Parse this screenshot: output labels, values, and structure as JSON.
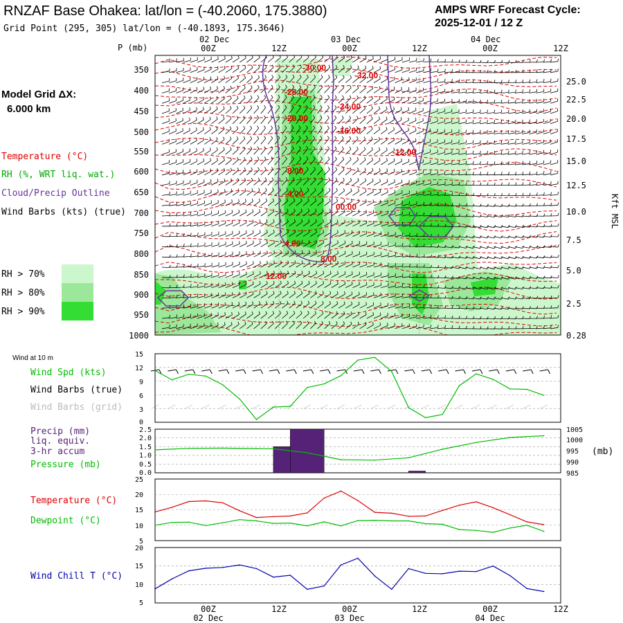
{
  "header": {
    "title": "RNZAF Base Ohakea:  lat/lon = (-40.2060, 175.3880)",
    "grid_point": "Grid Point (295, 305) lat/lon = (-40.1893, 175.3646)",
    "forecast_line1": "AMPS WRF Forecast Cycle:",
    "forecast_line2": "2025-12-01 / 12  Z"
  },
  "time_axis": {
    "ticks": [
      "00Z",
      "12Z",
      "00Z",
      "12Z",
      "00Z",
      "12Z"
    ],
    "dates_top": [
      "02 Dec",
      "03 Dec",
      "04 Dec"
    ],
    "dates_bottom": [
      "02 Dec",
      "03 Dec",
      "04 Dec"
    ]
  },
  "colors": {
    "rh70": "#ccf7cc",
    "rh80": "#9be89b",
    "rh90": "#33dd33",
    "temperature": "#dd0000",
    "dewpoint": "#00bb00",
    "cloud_outline": "#663399",
    "wind_chill": "#0000aa",
    "precip_bar": "#552277"
  },
  "sounding": {
    "p_label": "P (mb)",
    "model_grid_label": "Model Grid ΔX:",
    "model_grid_value": "6.000 km",
    "pressure_ticks": [
      "350",
      "400",
      "450",
      "500",
      "550",
      "600",
      "650",
      "700",
      "750",
      "800",
      "850",
      "900",
      "950",
      "1000"
    ],
    "kft_ticks": [
      "25.0",
      "22.5",
      "20.0",
      "17.5",
      "15.0",
      "12.5",
      "10.0",
      "7.5",
      "5.0",
      "2.5",
      "0.28"
    ],
    "kft_label": "Kft MSL",
    "legend": {
      "temperature": "Temperature (°C)",
      "rh": "RH (%, WRT liq. wat.)",
      "cloud": "Cloud/Precip Outline",
      "wind_barbs": "Wind Barbs (kts) (true)",
      "rh70": "RH > 70%",
      "rh80": "RH > 80%",
      "rh90": "RH > 90%"
    },
    "temp_labels": [
      "-30.00",
      "-32.00",
      "-28.00",
      "-24.00",
      "-20.00",
      "-16.00",
      "-12.00",
      "-8.00",
      "-4.00",
      "00.00",
      "4.00",
      "8.00",
      "12.00"
    ]
  },
  "panels": {
    "wind": {
      "header": "Wind at 10 m",
      "spd_label": "Wind Spd (kts)",
      "barbs_true": "Wind Barbs (true)",
      "barbs_grid": "Wind Barbs (grid)",
      "yticks": [
        "15",
        "12",
        "9",
        "6",
        "3",
        "0"
      ]
    },
    "precip": {
      "label1": "Precip (mm)",
      "label2": "liq. equiv.",
      "label3": "3-hr accum",
      "label4": "Pressure (mb)",
      "yticks_left": [
        "2.5",
        "2.0",
        "1.5",
        "1.0",
        "0.5",
        "0.0"
      ],
      "yticks_right": [
        "1005",
        "1000",
        "995",
        "990",
        "985"
      ],
      "unit_right": "(mb)"
    },
    "temp": {
      "label1": "Temperature (°C)",
      "label2": "Dewpoint (°C)",
      "yticks": [
        "25",
        "20",
        "15",
        "10",
        "5"
      ]
    },
    "chill": {
      "label": "Wind Chill T (°C)",
      "yticks": [
        "20",
        "15",
        "10",
        "5"
      ]
    }
  },
  "chart_data": [
    {
      "type": "line",
      "panel": "wind",
      "x_hours": [
        0,
        3,
        6,
        9,
        12,
        15,
        18,
        21,
        24,
        27,
        30,
        33,
        36,
        39,
        42,
        45,
        48,
        51,
        54,
        57,
        60,
        63,
        66,
        69
      ],
      "series": [
        {
          "name": "Wind Spd (kts)",
          "values": [
            11.3,
            9.3,
            10.5,
            10.1,
            8.2,
            5.1,
            0.6,
            3.3,
            3.5,
            7.6,
            8.4,
            10.2,
            13.6,
            14.2,
            11.1,
            3.2,
            1.0,
            1.7,
            8.0,
            10.6,
            9.4,
            7.3,
            7.2,
            5.9
          ]
        }
      ],
      "ylim": [
        0,
        15
      ]
    },
    {
      "type": "bar",
      "panel": "precip",
      "bars": [
        {
          "start_hour": 21,
          "end_hour": 24,
          "value": 1.5
        },
        {
          "start_hour": 24,
          "end_hour": 30,
          "value": 2.5
        },
        {
          "start_hour": 45,
          "end_hour": 48,
          "value": 0.1
        }
      ],
      "ylim": [
        0,
        2.5
      ],
      "series": [
        {
          "name": "Pressure (mb)",
          "x_hours": [
            0,
            6,
            12,
            18,
            21,
            27,
            33,
            39,
            45,
            51,
            57,
            63,
            69
          ],
          "values": [
            995.5,
            996.2,
            996.3,
            996.1,
            996.0,
            994.2,
            991.0,
            990.8,
            991.9,
            995.8,
            998.9,
            1001.2,
            1002.0
          ]
        }
      ],
      "y2lim": [
        985,
        1005
      ]
    },
    {
      "type": "line",
      "panel": "temp",
      "x_hours": [
        0,
        3,
        6,
        9,
        12,
        15,
        18,
        21,
        24,
        27,
        30,
        33,
        36,
        39,
        42,
        45,
        48,
        51,
        54,
        57,
        60,
        63,
        66,
        69
      ],
      "series": [
        {
          "name": "Temperature (°C)",
          "values": [
            14.3,
            15.8,
            17.7,
            17.9,
            17.3,
            14.7,
            12.5,
            12.8,
            13.0,
            14.0,
            18.8,
            21.1,
            18.0,
            14.2,
            13.9,
            12.9,
            13.0,
            14.8,
            16.5,
            17.6,
            15.7,
            13.4,
            11.1,
            10.2
          ]
        },
        {
          "name": "Dewpoint (°C)",
          "values": [
            10.0,
            10.9,
            11.0,
            9.9,
            10.8,
            11.8,
            11.4,
            10.6,
            10.7,
            9.8,
            11.1,
            9.8,
            11.5,
            11.6,
            11.4,
            11.4,
            10.5,
            10.3,
            8.6,
            8.3,
            7.7,
            9.1,
            10.0,
            8.0
          ]
        }
      ],
      "ylim": [
        5,
        25
      ]
    },
    {
      "type": "line",
      "panel": "chill",
      "x_hours": [
        0,
        3,
        6,
        9,
        12,
        15,
        18,
        21,
        24,
        27,
        30,
        33,
        36,
        39,
        42,
        45,
        48,
        51,
        54,
        57,
        60,
        63,
        66,
        69
      ],
      "series": [
        {
          "name": "Wind Chill T (°C)",
          "values": [
            8.8,
            11.5,
            13.7,
            14.4,
            14.6,
            15.3,
            14.3,
            12.0,
            12.5,
            8.7,
            9.6,
            15.3,
            17.1,
            12.3,
            8.7,
            14.3,
            13.0,
            12.9,
            13.6,
            13.5,
            15.0,
            12.4,
            8.9,
            8.1
          ]
        }
      ],
      "ylim": [
        5,
        20
      ]
    }
  ]
}
